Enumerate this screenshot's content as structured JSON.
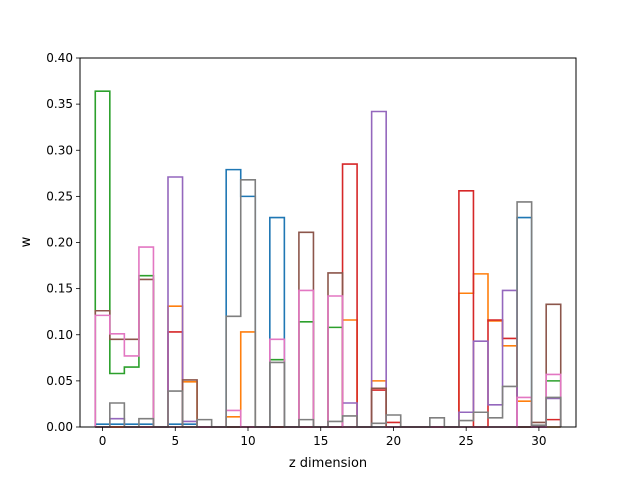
{
  "chart_data": {
    "type": "step",
    "xlabel": "z dimension",
    "ylabel": "w",
    "xlim": [
      -1.55,
      32.55
    ],
    "ylim": [
      0.0,
      0.4
    ],
    "xticks": [
      0,
      5,
      10,
      15,
      20,
      25,
      30
    ],
    "yticks": [
      0.0,
      0.05,
      0.1,
      0.15,
      0.2,
      0.25,
      0.3,
      0.35,
      0.4
    ],
    "ytick_labels": [
      "0.00",
      "0.05",
      "0.10",
      "0.15",
      "0.20",
      "0.25",
      "0.30",
      "0.35",
      "0.40"
    ],
    "grid": false,
    "x": [
      0,
      1,
      2,
      3,
      4,
      5,
      6,
      7,
      8,
      9,
      10,
      11,
      12,
      13,
      14,
      15,
      16,
      17,
      18,
      19,
      20,
      21,
      22,
      23,
      24,
      25,
      26,
      27,
      28,
      29,
      30,
      31
    ],
    "series": [
      {
        "color": "#1f77b4",
        "values": [
          0.003,
          0.003,
          0.003,
          0.003,
          0,
          0.003,
          0.003,
          0,
          0,
          0.279,
          0.25,
          0,
          0.227,
          0,
          0,
          0,
          0,
          0,
          0,
          0,
          0,
          0,
          0,
          0,
          0,
          0,
          0,
          0,
          0,
          0.227,
          0,
          0
        ]
      },
      {
        "color": "#ff7f0e",
        "values": [
          0,
          0,
          0,
          0,
          0,
          0.131,
          0.049,
          0,
          0,
          0.011,
          0.103,
          0,
          0,
          0,
          0,
          0,
          0,
          0.116,
          0,
          0.05,
          0,
          0,
          0,
          0,
          0,
          0.145,
          0.166,
          0.115,
          0.088,
          0.028,
          0,
          0
        ]
      },
      {
        "color": "#2ca02c",
        "values": [
          0.364,
          0.058,
          0.065,
          0.164,
          0,
          0,
          0,
          0,
          0,
          0,
          0,
          0,
          0.073,
          0,
          0.114,
          0,
          0.108,
          0,
          0,
          0,
          0,
          0,
          0,
          0,
          0,
          0,
          0,
          0,
          0,
          0,
          0,
          0.05
        ]
      },
      {
        "color": "#d62728",
        "values": [
          0,
          0,
          0,
          0,
          0,
          0.103,
          0,
          0,
          0,
          0,
          0,
          0,
          0,
          0,
          0,
          0,
          0,
          0.285,
          0,
          0.04,
          0.005,
          0,
          0,
          0,
          0,
          0.256,
          0,
          0.116,
          0.096,
          0,
          0,
          0.008
        ]
      },
      {
        "color": "#9467bd",
        "values": [
          0,
          0.009,
          0,
          0,
          0,
          0.271,
          0.006,
          0,
          0,
          0,
          0,
          0,
          0,
          0,
          0,
          0,
          0,
          0.026,
          0,
          0.342,
          0,
          0,
          0,
          0,
          0,
          0.016,
          0.093,
          0.024,
          0.148,
          0,
          0,
          0.031
        ]
      },
      {
        "color": "#8c564b",
        "values": [
          0.126,
          0.095,
          0.095,
          0.16,
          0,
          0,
          0.051,
          0,
          0,
          0,
          0,
          0,
          0,
          0,
          0.211,
          0,
          0.167,
          0,
          0,
          0.042,
          0,
          0,
          0,
          0,
          0,
          0,
          0,
          0,
          0,
          0,
          0.005,
          0.133
        ]
      },
      {
        "color": "#e377c2",
        "values": [
          0.121,
          0.101,
          0.077,
          0.195,
          0,
          0,
          0,
          0,
          0,
          0.018,
          0,
          0,
          0.095,
          0,
          0.148,
          0,
          0.142,
          0,
          0,
          0,
          0,
          0,
          0,
          0,
          0,
          0,
          0,
          0,
          0,
          0.032,
          0,
          0.057
        ]
      },
      {
        "color": "#7f7f7f",
        "values": [
          0,
          0.026,
          0,
          0.009,
          0,
          0.039,
          0,
          0.008,
          0,
          0.12,
          0.268,
          0,
          0.07,
          0,
          0.008,
          0,
          0.006,
          0.012,
          0,
          0.004,
          0.013,
          0,
          0,
          0.01,
          0,
          0.007,
          0.016,
          0.01,
          0.044,
          0.244,
          0.002,
          0.032
        ]
      }
    ]
  }
}
